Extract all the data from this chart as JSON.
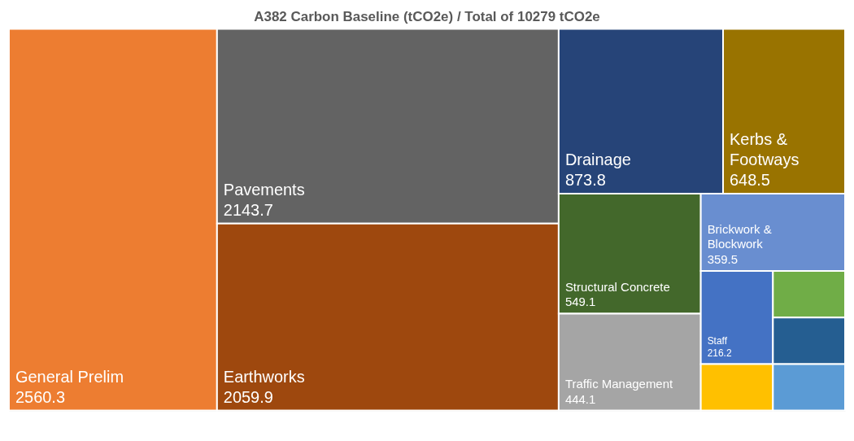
{
  "chart_data": {
    "type": "other",
    "title": "A382 Carbon Baseline (tCO2e) / Total of 10279 tCO2e",
    "categories": [
      "General Prelim",
      "Pavements",
      "Earthworks",
      "Drainage",
      "Kerbs & Footways",
      "Structural Concrete",
      "Traffic Management",
      "Brickwork & Blockwork",
      "Staff",
      null,
      null,
      null,
      null
    ],
    "values": [
      2560.3,
      2143.7,
      2059.9,
      873.8,
      648.5,
      549.1,
      444.1,
      359.5,
      216.2,
      null,
      null,
      null,
      null
    ],
    "colors": [
      "#ed7d31",
      "#636363",
      "#9e480e",
      "#264478",
      "#997300",
      "#43682b",
      "#a5a5a5",
      "#698ed0",
      "#4472c4",
      "#ffc000",
      "#70ad47",
      "#255e91",
      "#5b9bd5"
    ],
    "data_labels": true
  }
}
